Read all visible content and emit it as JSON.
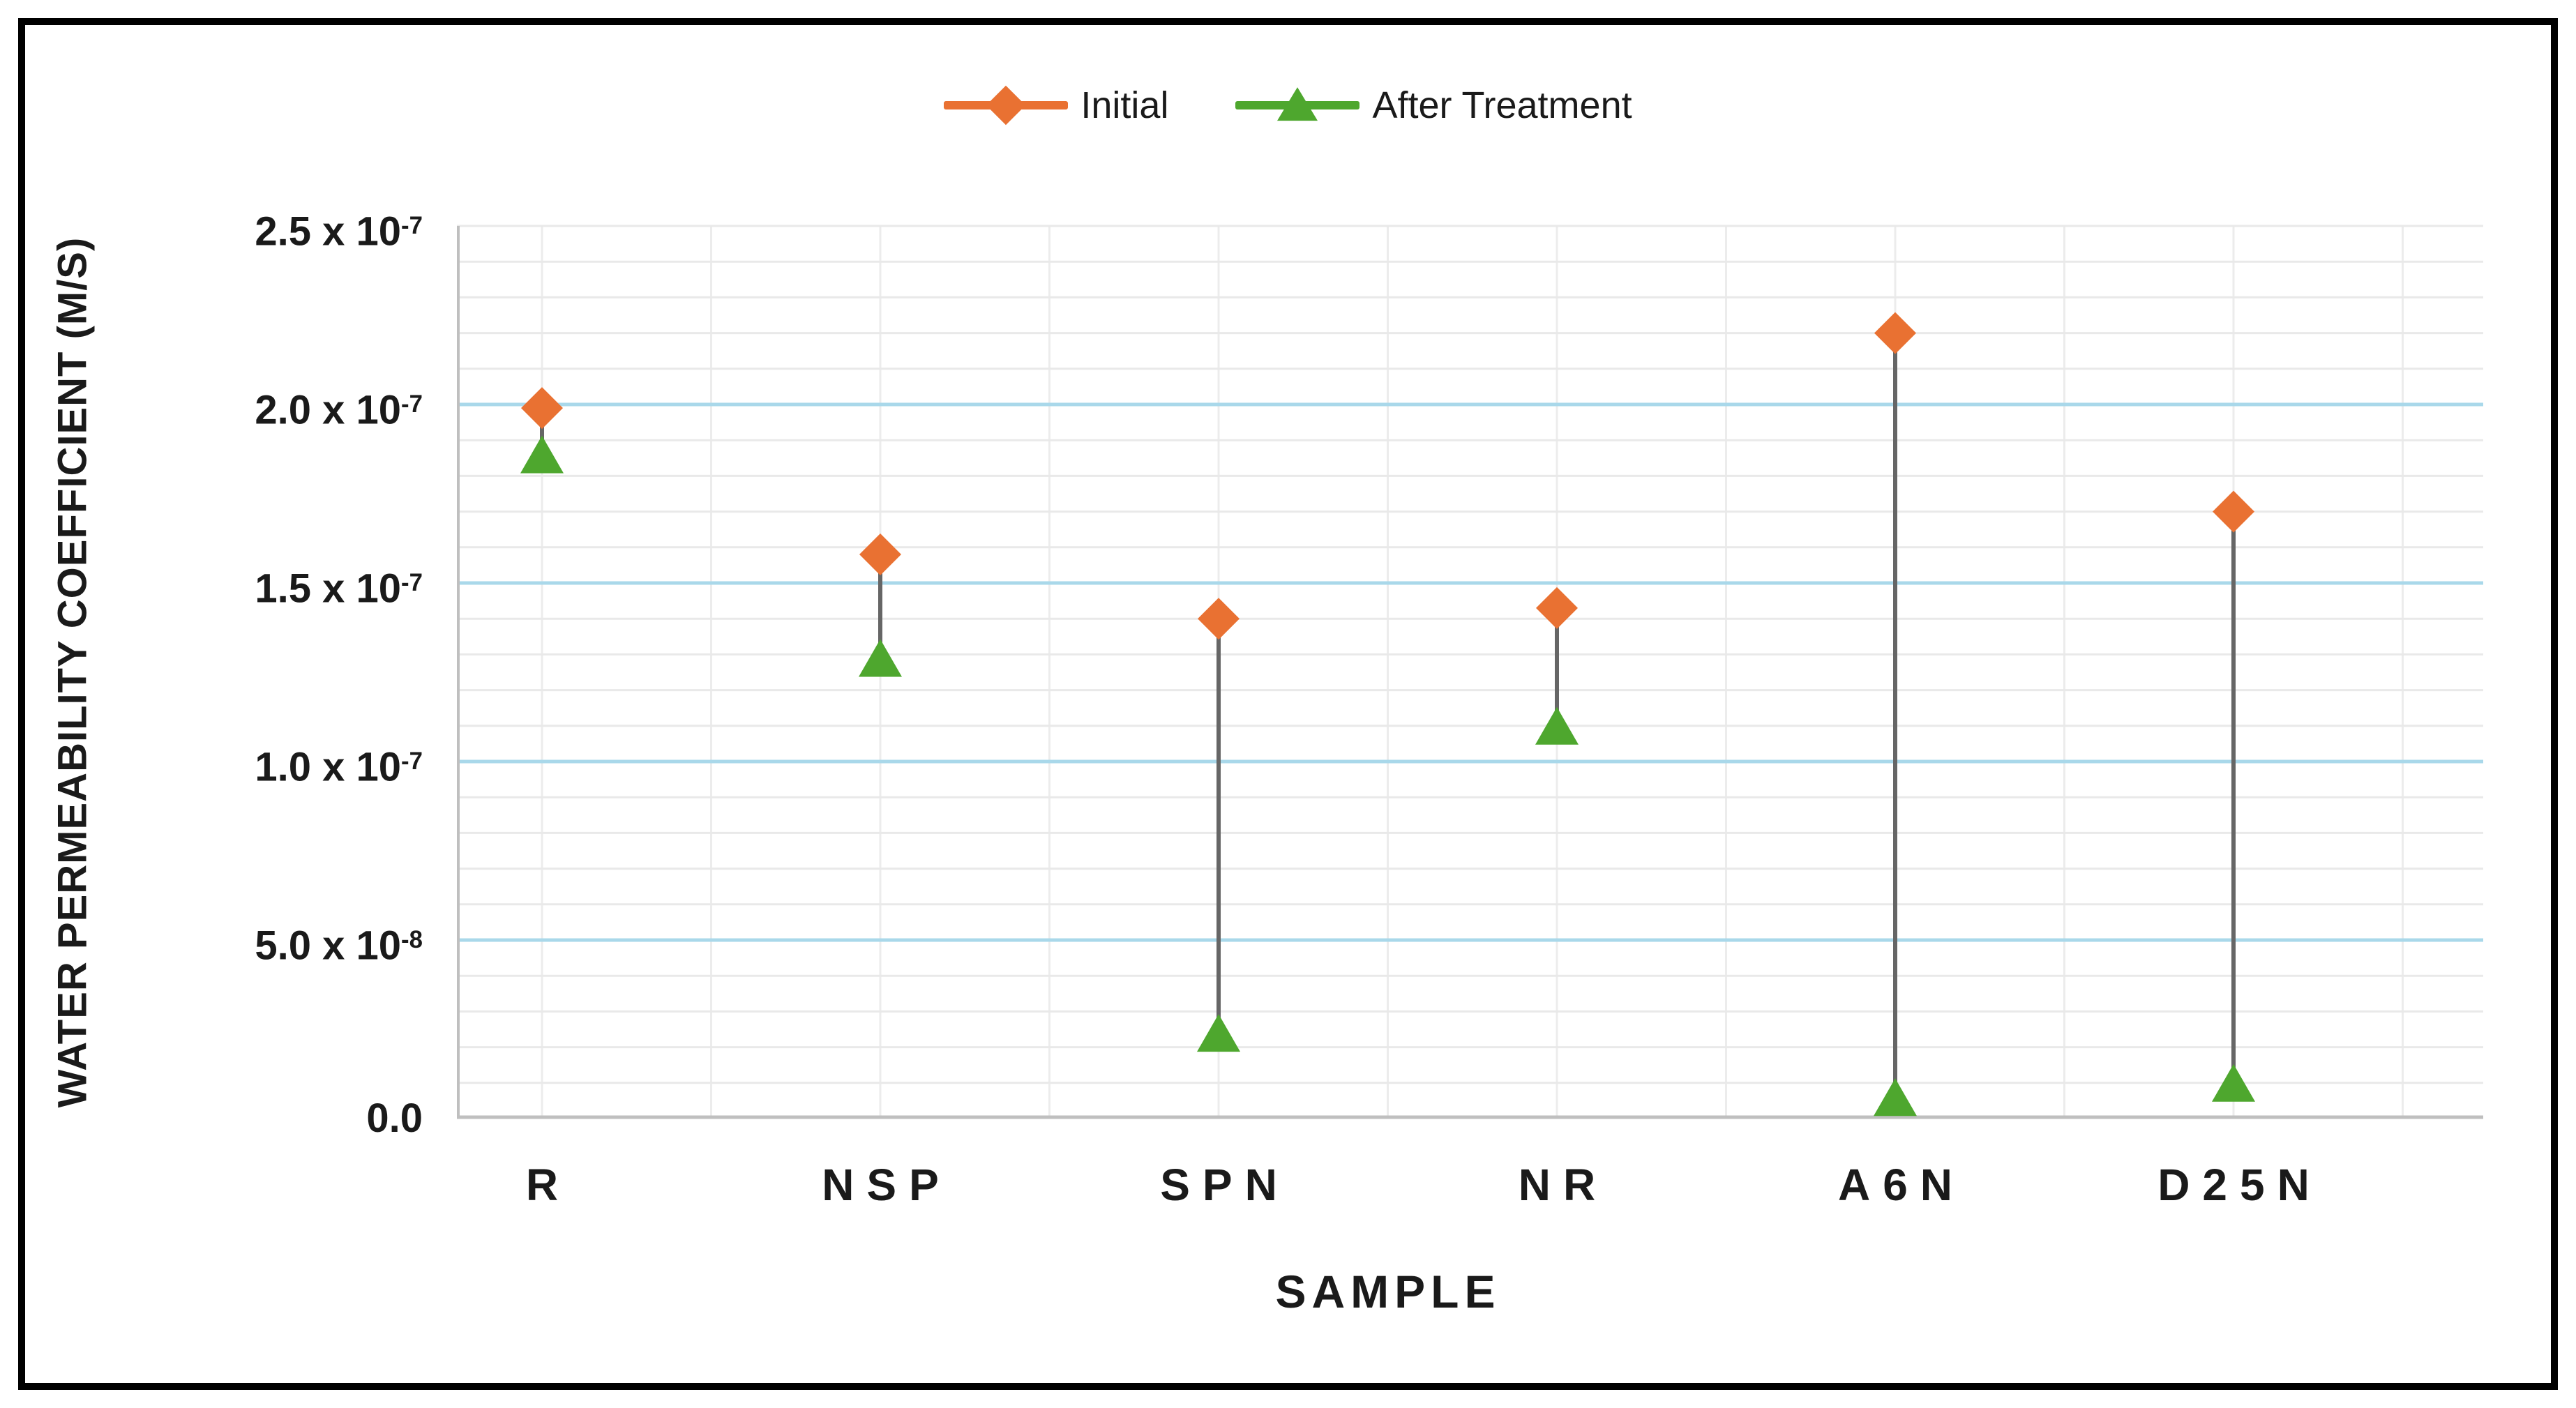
{
  "palette": {
    "orange": "#E97132",
    "green": "#4EA72E",
    "gridline_major": "#A9D8EA",
    "gridline_minor": "#E9E9E9",
    "gridline_vertical": "#ECECEC",
    "axis_line": "#BFBFBF",
    "connector": "#666666",
    "frame": "#000000",
    "text": "#1A1A1A"
  },
  "legend": {
    "items": [
      {
        "label": "Initial",
        "marker": "diamond",
        "color": "#E97132"
      },
      {
        "label": "After Treatment",
        "marker": "triangle",
        "color": "#4EA72E"
      }
    ]
  },
  "chart_data": {
    "type": "scatter",
    "subtype": "line-with-markers-and-high-low-lines",
    "title": "",
    "xlabel": "SAMPLE",
    "ylabel": "WATER PERMEABILITY COEFFICIENT (M/S)",
    "categories": [
      "R",
      "NSP",
      "SPN",
      "NR",
      "A6N",
      "D25N"
    ],
    "series": [
      {
        "name": "Initial",
        "marker": "diamond",
        "color": "#E97132",
        "values": [
          1.99e-07,
          1.58e-07,
          1.4e-07,
          1.43e-07,
          2.2e-07,
          1.7e-07
        ]
      },
      {
        "name": "After Treatment",
        "marker": "triangle",
        "color": "#4EA72E",
        "values": [
          1.86e-07,
          1.29e-07,
          2.4e-08,
          1.1e-07,
          6e-09,
          1e-08
        ]
      }
    ],
    "high_low_lines": true,
    "ylim": [
      0,
      2.5e-07
    ],
    "ytick_step": 5e-08,
    "yminor_step": 1e-08,
    "grid": "horizontal-major-blue, horizontal-minor-gray, vertical-half-category-gray",
    "legend_position": "top-center",
    "yticks": [
      {
        "mant": "2.5 x 10",
        "exp": "-7",
        "value": 2.5e-07
      },
      {
        "mant": "2.0 x 10",
        "exp": "-7",
        "value": 2e-07
      },
      {
        "mant": "1.5 x 10",
        "exp": "-7",
        "value": 1.5e-07
      },
      {
        "mant": "1.0 x 10",
        "exp": "-7",
        "value": 1e-07
      },
      {
        "mant": "5.0 x 10",
        "exp": "-8",
        "value": 5e-08
      },
      {
        "mant": "0.0",
        "exp": "",
        "value": 0
      }
    ]
  }
}
